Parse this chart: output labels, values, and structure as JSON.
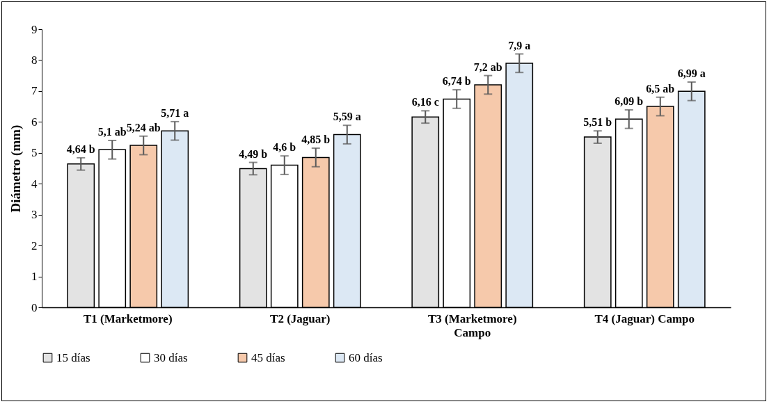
{
  "chart_data": {
    "type": "bar",
    "ylabel": "Diámetro (mm)",
    "categories": [
      "T1 (Marketmore)",
      "T2 (Jaguar)",
      "T3 (Marketmore)\nCampo",
      "T4 (Jaguar) Campo"
    ],
    "ylim": [
      0,
      9
    ],
    "yticks": [
      0,
      1,
      2,
      3,
      4,
      5,
      6,
      7,
      8,
      9
    ],
    "grid": false,
    "legend": "bottom",
    "series": [
      {
        "name": "15 días",
        "color": "#e3e3e3",
        "values": [
          4.64,
          4.49,
          6.16,
          5.51
        ],
        "errors": [
          0.2,
          0.2,
          0.2,
          0.2
        ],
        "value_labels": [
          "4,64 b",
          "4,49 b",
          "6,16 c",
          "5,51 b"
        ]
      },
      {
        "name": "30 días",
        "color": "#ffffff",
        "values": [
          5.1,
          4.6,
          6.74,
          6.09
        ],
        "errors": [
          0.3,
          0.3,
          0.3,
          0.3
        ],
        "value_labels": [
          "5,1 ab",
          "4,6 b",
          "6,74 b",
          "6,09 b"
        ]
      },
      {
        "name": "45 días",
        "color": "#f6c9ab",
        "values": [
          5.24,
          4.85,
          7.2,
          6.5
        ],
        "errors": [
          0.3,
          0.3,
          0.3,
          0.3
        ],
        "value_labels": [
          "5,24 ab",
          "4,85 b",
          "7,2 ab",
          "6,5 ab"
        ]
      },
      {
        "name": "60 días",
        "color": "#dce8f4",
        "values": [
          5.71,
          5.59,
          7.9,
          6.99
        ],
        "errors": [
          0.3,
          0.3,
          0.3,
          0.3
        ],
        "value_labels": [
          "5,71 a",
          "5,59 a",
          "7,9 a",
          "6,99 a"
        ]
      }
    ]
  }
}
